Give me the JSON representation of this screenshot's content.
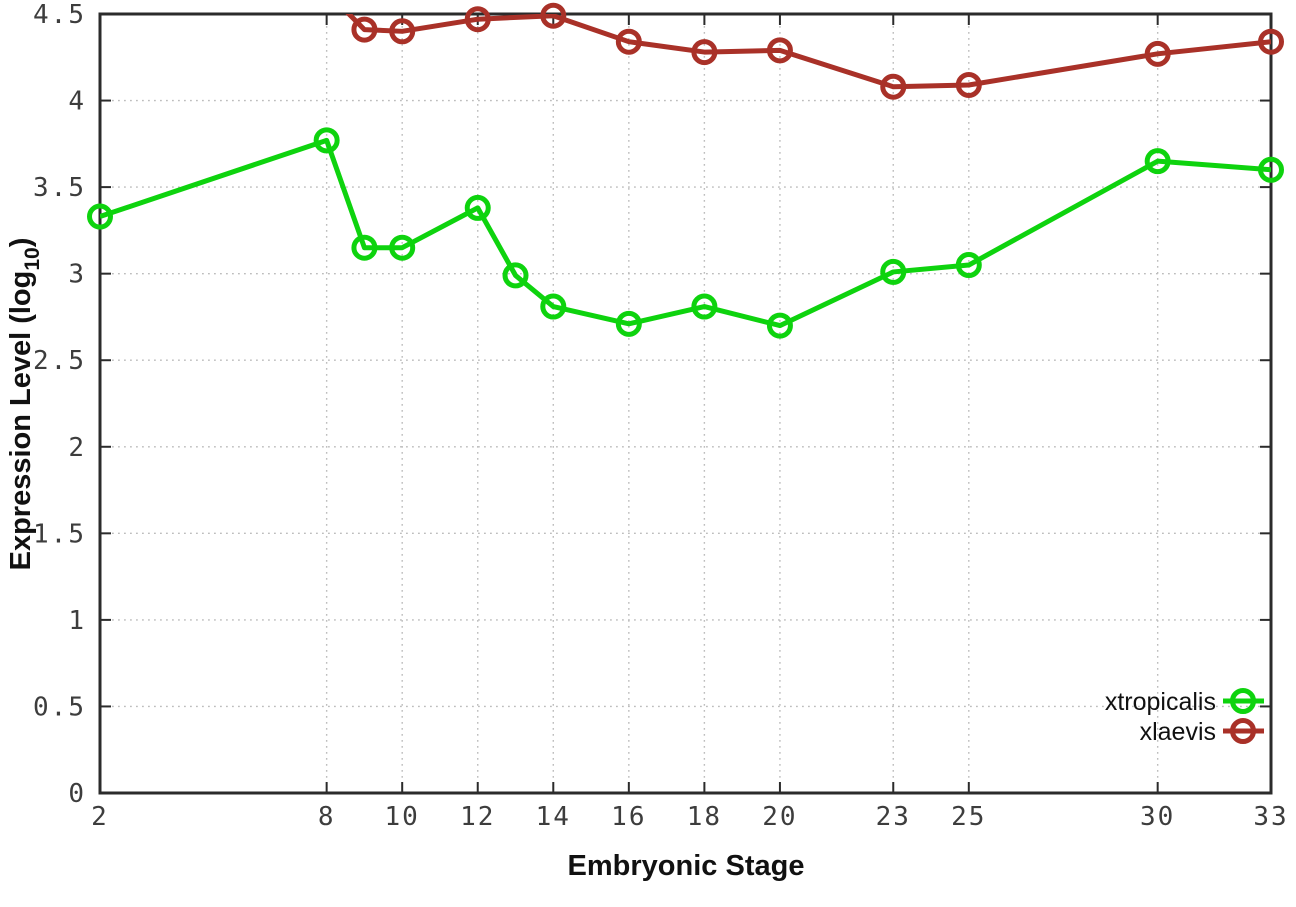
{
  "chart_data": {
    "type": "line",
    "title": "",
    "xlabel": "Embryonic Stage",
    "ylabel": "Expression Level (log10)",
    "ylabel_parts": {
      "prefix": "Expression Level (log",
      "sub": "10",
      "suffix": ")"
    },
    "xlim": [
      2,
      33
    ],
    "ylim": [
      0,
      4.5
    ],
    "x_tick_values": [
      2,
      8,
      10,
      12,
      14,
      16,
      18,
      20,
      23,
      25,
      30,
      33
    ],
    "x_tick_labels": [
      "2",
      "8",
      "10",
      "12",
      "14",
      "16",
      "18",
      "20",
      "23",
      "25",
      "30",
      "33"
    ],
    "y_tick_values": [
      0,
      0.5,
      1,
      1.5,
      2,
      2.5,
      3,
      3.5,
      4,
      4.5
    ],
    "y_tick_labels": [
      "0",
      "0.5",
      "1",
      "1.5",
      "2",
      "2.5",
      "3",
      "3.5",
      "4",
      "4.5"
    ],
    "grid": true,
    "grid_style": "dotted",
    "legend_position": "bottom-right",
    "series": [
      {
        "name": "xtropicalis",
        "color": "#0ed30e",
        "marker": "open-circle",
        "points": [
          [
            2,
            3.33
          ],
          [
            8,
            3.77
          ],
          [
            9,
            3.15
          ],
          [
            10,
            3.15
          ],
          [
            12,
            3.38
          ],
          [
            13,
            2.99
          ],
          [
            14,
            2.81
          ],
          [
            16,
            2.71
          ],
          [
            18,
            2.81
          ],
          [
            20,
            2.7
          ],
          [
            23,
            3.01
          ],
          [
            25,
            3.05
          ],
          [
            30,
            3.65
          ],
          [
            33,
            3.6
          ]
        ]
      },
      {
        "name": "xlaevis",
        "color": "#a93128",
        "marker": "open-circle",
        "points": [
          [
            8,
            4.63
          ],
          [
            9,
            4.41
          ],
          [
            10,
            4.4
          ],
          [
            12,
            4.47
          ],
          [
            14,
            4.49
          ],
          [
            16,
            4.34
          ],
          [
            18,
            4.28
          ],
          [
            20,
            4.29
          ],
          [
            23,
            4.08
          ],
          [
            25,
            4.09
          ],
          [
            30,
            4.27
          ],
          [
            33,
            4.34
          ]
        ]
      }
    ]
  },
  "legend": {
    "entries": [
      "xtropicalis",
      "xlaevis"
    ]
  },
  "colors": {
    "background": "#ffffff",
    "axis": "#2b2b2b",
    "grid": "#bdbdbd",
    "tick_label": "#3d3d3d",
    "series_green": "#0ed30e",
    "series_red": "#a93128"
  }
}
